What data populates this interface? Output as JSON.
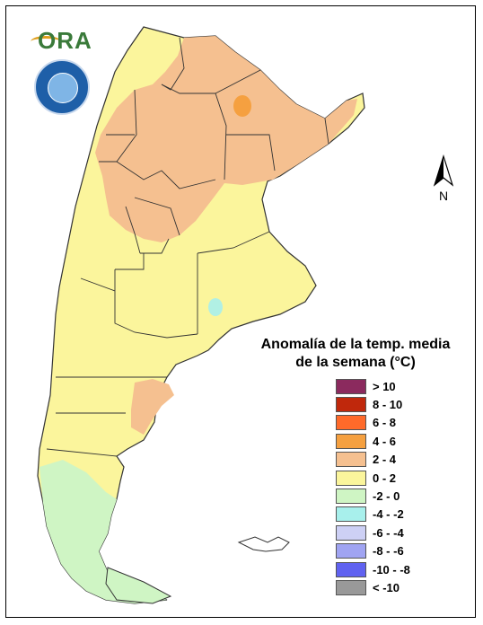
{
  "legend": {
    "title_line1": "Anomalía de la temp. media",
    "title_line2": "de la semana (°C)",
    "items": [
      {
        "label": "> 10",
        "color": "#8b2a5e"
      },
      {
        "label": "8 - 10",
        "color": "#c0280c"
      },
      {
        "label": "6 - 8",
        "color": "#ff6a2a"
      },
      {
        "label": "4 - 6",
        "color": "#f5a040"
      },
      {
        "label": "2 - 4",
        "color": "#f5c090"
      },
      {
        "label": "0 - 2",
        "color": "#fbf59c"
      },
      {
        "label": "-2 - 0",
        "color": "#cff5c4"
      },
      {
        "label": "-4 - -2",
        "color": "#a8f0ec"
      },
      {
        "label": "-6 - -4",
        "color": "#cdd0f5"
      },
      {
        "label": "-8 - -6",
        "color": "#a0a4f2"
      },
      {
        "label": "-10 - -8",
        "color": "#6062f0"
      },
      {
        "label": "< -10",
        "color": "#999999"
      }
    ]
  },
  "north": {
    "letter": "N"
  },
  "logo": {
    "text": "ORA"
  },
  "map": {
    "country": "Argentina",
    "colors": {
      "warm": "#f5c090",
      "hot": "#f5a040",
      "mild": "#fbf59c",
      "cool": "#cff5c4",
      "cold": "#a8f0ec",
      "border": "#333333"
    }
  }
}
